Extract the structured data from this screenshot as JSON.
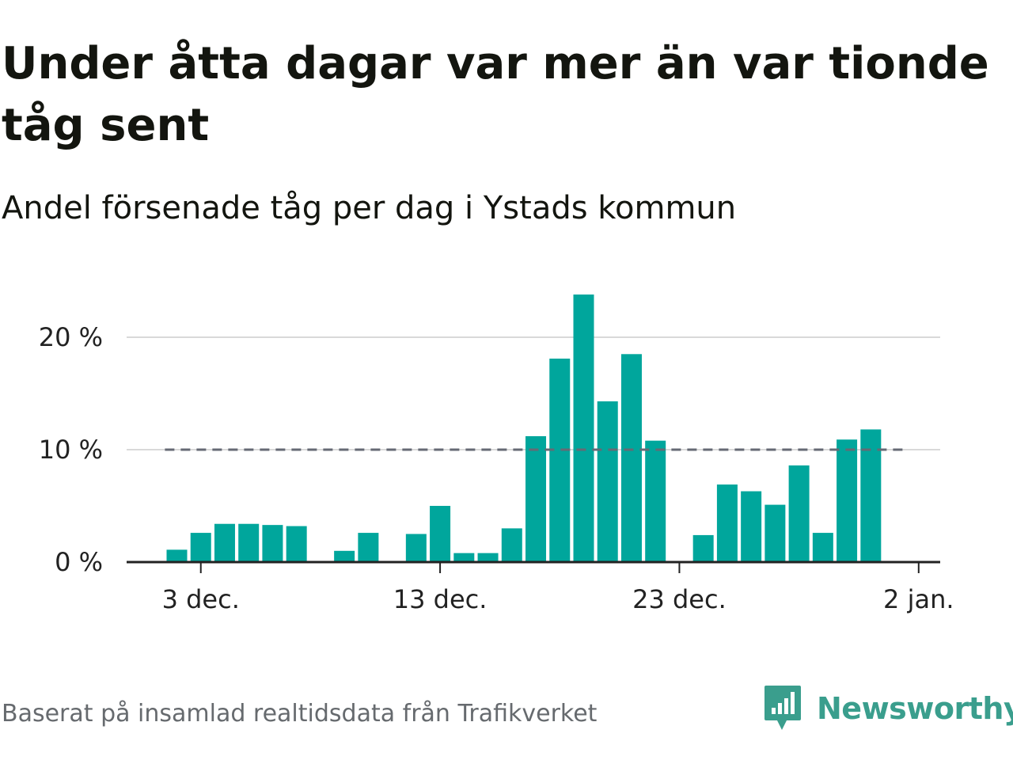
{
  "title": "Under åtta dagar var mer än var tionde tåg sent",
  "subtitle": "Andel försenade tåg per dag i Ystads kommun",
  "source": "Baserat på insamlad realtidsdata från Trafikverket",
  "brand": {
    "name": "Newsworthy",
    "color": "#3a9e8d",
    "icon": "newsworthy-logo-icon"
  },
  "colors": {
    "bar": "#00a69c",
    "reference_line": "#666a74",
    "grid": "#d9d9d9",
    "axis": "#222222"
  },
  "chart_data": {
    "type": "bar",
    "title": "Under åtta dagar var mer än var tionde tåg sent",
    "subtitle": "Andel försenade tåg per dag i Ystads kommun",
    "x_ticks": [
      {
        "day": 3,
        "label": "3 dec."
      },
      {
        "day": 13,
        "label": "13 dec."
      },
      {
        "day": 23,
        "label": "23 dec."
      },
      {
        "day": 33,
        "label": "2 jan."
      }
    ],
    "y_ticks": [
      {
        "value": 0,
        "label": "0 %"
      },
      {
        "value": 10,
        "label": "10 %"
      },
      {
        "value": 20,
        "label": "20 %"
      }
    ],
    "ylim": [
      0,
      20
    ],
    "xlim": [
      -0.1,
      33.9
    ],
    "reference_line": {
      "value": 10,
      "from_day": 1.5,
      "to_day": 32.5,
      "style": "dashed"
    },
    "grid": true,
    "series": [
      {
        "values": [
          {
            "day": 2,
            "value": 1.1
          },
          {
            "day": 3,
            "value": 2.6
          },
          {
            "day": 4,
            "value": 3.4
          },
          {
            "day": 5,
            "value": 3.4
          },
          {
            "day": 6,
            "value": 3.3
          },
          {
            "day": 7,
            "value": 3.2
          },
          {
            "day": 9,
            "value": 1.0
          },
          {
            "day": 10,
            "value": 2.6
          },
          {
            "day": 12,
            "value": 2.5
          },
          {
            "day": 13,
            "value": 5.0
          },
          {
            "day": 14,
            "value": 0.8
          },
          {
            "day": 15,
            "value": 0.8
          },
          {
            "day": 16,
            "value": 3.0
          },
          {
            "day": 17,
            "value": 11.2
          },
          {
            "day": 18,
            "value": 18.1
          },
          {
            "day": 19,
            "value": 23.8
          },
          {
            "day": 20,
            "value": 14.3
          },
          {
            "day": 21,
            "value": 18.5
          },
          {
            "day": 22,
            "value": 10.8
          },
          {
            "day": 24,
            "value": 2.4
          },
          {
            "day": 25,
            "value": 6.9
          },
          {
            "day": 26,
            "value": 6.3
          },
          {
            "day": 27,
            "value": 5.1
          },
          {
            "day": 28,
            "value": 8.6
          },
          {
            "day": 29,
            "value": 2.6
          },
          {
            "day": 30,
            "value": 10.9
          },
          {
            "day": 31,
            "value": 11.8
          }
        ]
      }
    ]
  }
}
